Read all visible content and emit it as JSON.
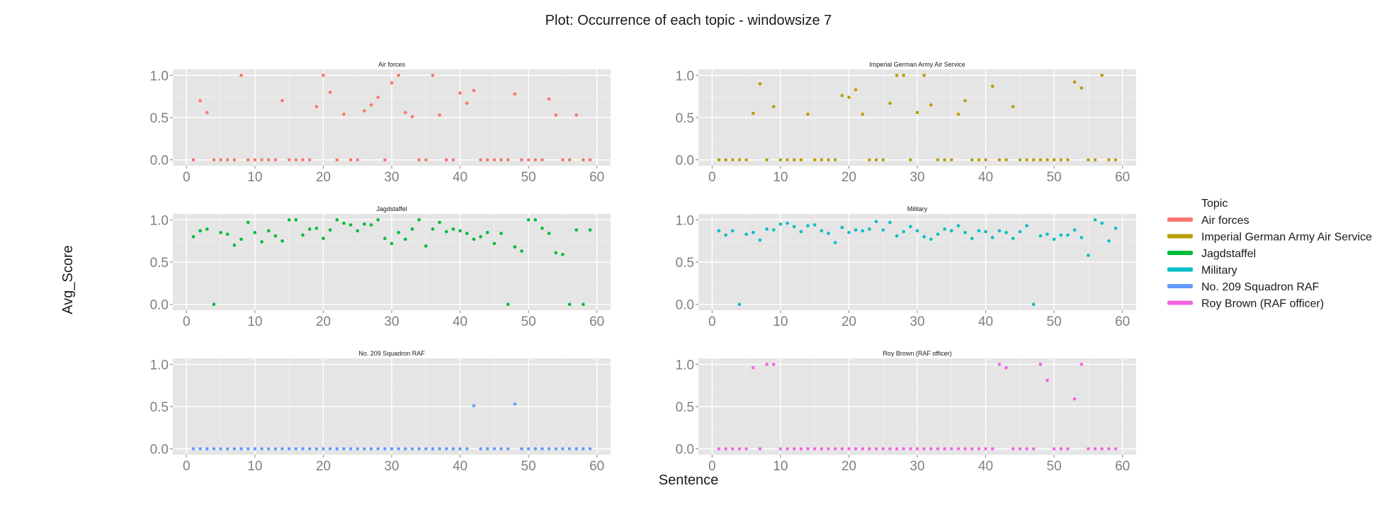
{
  "title": "Plot: Occurrence of each topic - windowsize 7",
  "chart_data": {
    "type": "scatter",
    "title": "Plot: Occurrence of each topic - windowsize 7",
    "xlabel": "Sentence",
    "ylabel": "Avg_Score",
    "xlim": [
      -2,
      62
    ],
    "ylim": [
      -0.07,
      1.07
    ],
    "xticks": [
      0,
      10,
      20,
      30,
      40,
      50,
      60
    ],
    "yticks": [
      0.0,
      0.5,
      1.0
    ],
    "ytick_labels": [
      "0.0",
      "0.5",
      "1.0"
    ],
    "grid": true,
    "legend": {
      "title": "Topic",
      "placement": "right",
      "items": [
        {
          "label": "Air forces",
          "color": "#f8766d"
        },
        {
          "label": "Imperial German Army Air Service",
          "color": "#b79f00"
        },
        {
          "label": "Jagdstaffel",
          "color": "#00ba38"
        },
        {
          "label": "Military",
          "color": "#00bfc4"
        },
        {
          "label": "No. 209 Squadron RAF",
          "color": "#619cff"
        },
        {
          "label": "Roy Brown (RAF officer)",
          "color": "#f564e3"
        }
      ]
    },
    "panels": [
      {
        "name": "Air forces",
        "color": "#f8766d",
        "x": [
          1,
          2,
          3,
          4,
          5,
          6,
          7,
          8,
          9,
          10,
          11,
          12,
          13,
          14,
          15,
          16,
          17,
          18,
          19,
          20,
          21,
          22,
          23,
          24,
          25,
          26,
          27,
          28,
          29,
          30,
          31,
          32,
          33,
          34,
          35,
          36,
          37,
          38,
          39,
          40,
          41,
          42,
          43,
          44,
          45,
          46,
          47,
          48,
          49,
          50,
          51,
          52,
          53,
          54,
          55,
          56,
          57,
          58,
          59
        ],
        "y": [
          0,
          0.7,
          0.56,
          0,
          0,
          0,
          0,
          1.0,
          0,
          0,
          0,
          0,
          0,
          0.7,
          0,
          0,
          0,
          0,
          0.63,
          1.0,
          0.8,
          0,
          0.54,
          0,
          0,
          0.58,
          0.65,
          0.74,
          0,
          0.91,
          1.0,
          0.56,
          0.51,
          0,
          0,
          1.0,
          0.53,
          0,
          0,
          0.79,
          0.67,
          0.82,
          0,
          0,
          0,
          0,
          0,
          0.78,
          0,
          0,
          0,
          0,
          0.72,
          0.53,
          0,
          0,
          0.53,
          0,
          0
        ]
      },
      {
        "name": "Imperial German Army Air Service",
        "color": "#b79f00",
        "x": [
          1,
          2,
          3,
          4,
          5,
          6,
          7,
          8,
          9,
          10,
          11,
          12,
          13,
          14,
          15,
          16,
          17,
          18,
          19,
          20,
          21,
          22,
          23,
          24,
          25,
          26,
          27,
          28,
          29,
          30,
          31,
          32,
          33,
          34,
          35,
          36,
          37,
          38,
          39,
          40,
          41,
          42,
          43,
          44,
          45,
          46,
          47,
          48,
          49,
          50,
          51,
          52,
          53,
          54,
          55,
          56,
          57,
          58,
          59
        ],
        "y": [
          0,
          0,
          0,
          0,
          0,
          0.55,
          0.9,
          0,
          0.63,
          0,
          0,
          0,
          0,
          0.54,
          0,
          0,
          0,
          0,
          0.76,
          0.74,
          0.83,
          0.54,
          0,
          0,
          0,
          0.67,
          1.0,
          1.0,
          0,
          0.56,
          1.0,
          0.65,
          0,
          0,
          0,
          0.54,
          0.7,
          0,
          0,
          0,
          0.87,
          0,
          0,
          0.63,
          0,
          0,
          0,
          0,
          0,
          0,
          0,
          0,
          0.92,
          0.85,
          0,
          0,
          1.0,
          0,
          0
        ]
      },
      {
        "name": "Jagdstaffel",
        "color": "#00ba38",
        "x": [
          1,
          2,
          3,
          4,
          5,
          6,
          7,
          8,
          9,
          10,
          11,
          12,
          13,
          14,
          15,
          16,
          17,
          18,
          19,
          20,
          21,
          22,
          23,
          24,
          25,
          26,
          27,
          28,
          29,
          30,
          31,
          32,
          33,
          34,
          35,
          36,
          37,
          38,
          39,
          40,
          41,
          42,
          43,
          44,
          45,
          46,
          47,
          48,
          49,
          50,
          51,
          52,
          53,
          54,
          55,
          56,
          57,
          58,
          59
        ],
        "y": [
          0.8,
          0.87,
          0.89,
          0,
          0.85,
          0.83,
          0.7,
          0.77,
          0.97,
          0.85,
          0.74,
          0.87,
          0.81,
          0.75,
          1.0,
          1.0,
          0.82,
          0.89,
          0.9,
          0.78,
          0.88,
          1.0,
          0.96,
          0.94,
          0.87,
          0.95,
          0.94,
          1.0,
          0.78,
          0.72,
          0.85,
          0.77,
          0.89,
          1.0,
          0.69,
          0.89,
          0.97,
          0.86,
          0.89,
          0.87,
          0.84,
          0.77,
          0.8,
          0.85,
          0.72,
          0.84,
          0,
          0.68,
          0.63,
          1.0,
          1.0,
          0.9,
          0.84,
          0.61,
          0.59,
          0,
          0.88,
          0,
          0.88
        ]
      },
      {
        "name": "Military",
        "color": "#00bfc4",
        "x": [
          1,
          2,
          3,
          4,
          5,
          6,
          7,
          8,
          9,
          10,
          11,
          12,
          13,
          14,
          15,
          16,
          17,
          18,
          19,
          20,
          21,
          22,
          23,
          24,
          25,
          26,
          27,
          28,
          29,
          30,
          31,
          32,
          33,
          34,
          35,
          36,
          37,
          38,
          39,
          40,
          41,
          42,
          43,
          44,
          45,
          46,
          47,
          48,
          49,
          50,
          51,
          52,
          53,
          54,
          55,
          56,
          57,
          58,
          59
        ],
        "y": [
          0.87,
          0.82,
          0.87,
          0,
          0.83,
          0.85,
          0.76,
          0.89,
          0.88,
          0.95,
          0.96,
          0.92,
          0.86,
          0.93,
          0.94,
          0.87,
          0.84,
          0.73,
          0.91,
          0.85,
          0.88,
          0.87,
          0.89,
          0.98,
          0.88,
          0.97,
          0.81,
          0.86,
          0.92,
          0.87,
          0.8,
          0.77,
          0.83,
          0.89,
          0.87,
          0.93,
          0.85,
          0.78,
          0.87,
          0.86,
          0.79,
          0.87,
          0.85,
          0.78,
          0.86,
          0.93,
          0,
          0.81,
          0.83,
          0.77,
          0.82,
          0.82,
          0.88,
          0.79,
          0.58,
          1.0,
          0.96,
          0.75,
          0.9
        ]
      },
      {
        "name": "No. 209 Squadron RAF",
        "color": "#619cff",
        "x": [
          1,
          2,
          3,
          4,
          5,
          6,
          7,
          8,
          9,
          10,
          11,
          12,
          13,
          14,
          15,
          16,
          17,
          18,
          19,
          20,
          21,
          22,
          23,
          24,
          25,
          26,
          27,
          28,
          29,
          30,
          31,
          32,
          33,
          34,
          35,
          36,
          37,
          38,
          39,
          40,
          41,
          42,
          43,
          44,
          45,
          46,
          47,
          48,
          49,
          50,
          51,
          52,
          53,
          54,
          55,
          56,
          57,
          58,
          59
        ],
        "y": [
          0,
          0,
          0,
          0,
          0,
          0,
          0,
          0,
          0,
          0,
          0,
          0,
          0,
          0,
          0,
          0,
          0,
          0,
          0,
          0,
          0,
          0,
          0,
          0,
          0,
          0,
          0,
          0,
          0,
          0,
          0,
          0,
          0,
          0,
          0,
          0,
          0,
          0,
          0,
          0,
          0,
          0.51,
          0,
          0,
          0,
          0,
          0,
          0.53,
          0,
          0,
          0,
          0,
          0,
          0,
          0,
          0,
          0,
          0,
          0
        ]
      },
      {
        "name": "Roy Brown (RAF officer)",
        "color": "#f564e3",
        "x": [
          1,
          2,
          3,
          4,
          5,
          6,
          7,
          8,
          9,
          10,
          11,
          12,
          13,
          14,
          15,
          16,
          17,
          18,
          19,
          20,
          21,
          22,
          23,
          24,
          25,
          26,
          27,
          28,
          29,
          30,
          31,
          32,
          33,
          34,
          35,
          36,
          37,
          38,
          39,
          40,
          41,
          42,
          43,
          44,
          45,
          46,
          47,
          48,
          49,
          50,
          51,
          52,
          53,
          54,
          55,
          56,
          57,
          58,
          59
        ],
        "y": [
          0,
          0,
          0,
          0,
          0,
          0.96,
          0,
          1.0,
          1.0,
          0,
          0,
          0,
          0,
          0,
          0,
          0,
          0,
          0,
          0,
          0,
          0,
          0,
          0,
          0,
          0,
          0,
          0,
          0,
          0,
          0,
          0,
          0,
          0,
          0,
          0,
          0,
          0,
          0,
          0,
          0,
          0,
          1.0,
          0.96,
          0,
          0,
          0,
          0,
          1.0,
          0.81,
          0,
          0,
          0,
          0.59,
          1.0,
          0,
          0,
          0,
          0,
          0
        ]
      }
    ]
  }
}
